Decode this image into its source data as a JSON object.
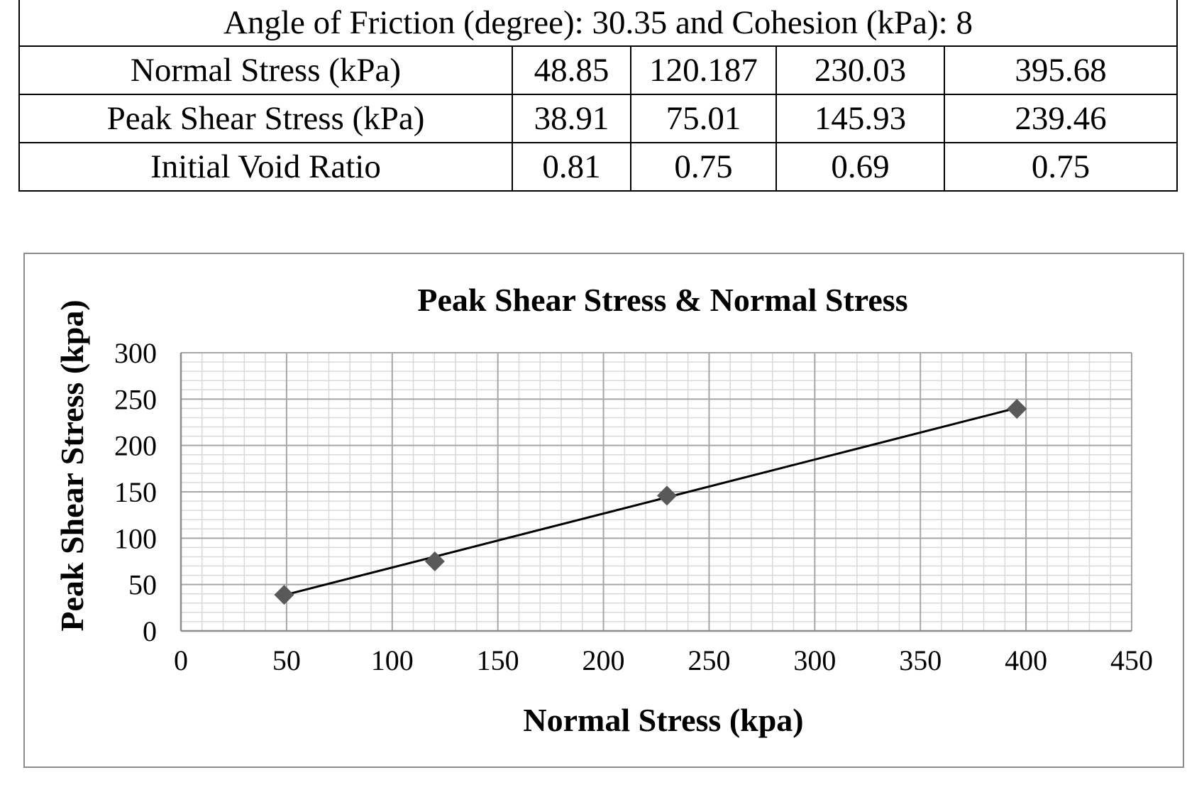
{
  "table": {
    "caption": "Angle of Friction (degree): 30.35 and Cohesion (kPa): 8",
    "rows": [
      {
        "label": "Normal Stress (kPa)",
        "values": [
          "48.85",
          "120.187",
          "230.03",
          "395.68"
        ]
      },
      {
        "label": "Peak Shear Stress (kPa)",
        "values": [
          "38.91",
          "75.01",
          "145.93",
          "239.46"
        ]
      },
      {
        "label": "Initial Void Ratio",
        "values": [
          "0.81",
          "0.75",
          "0.69",
          "0.75"
        ]
      }
    ]
  },
  "chart_data": {
    "type": "scatter",
    "title": "Peak Shear Stress & Normal Stress",
    "xlabel": "Normal Stress (kpa)",
    "ylabel": "Peak Shear Stress (kpa)",
    "xlim": [
      0,
      450
    ],
    "ylim": [
      0,
      300
    ],
    "x_ticks": [
      0,
      50,
      100,
      150,
      200,
      250,
      300,
      350,
      400,
      450
    ],
    "y_ticks": [
      0,
      50,
      100,
      150,
      200,
      250,
      300
    ],
    "grid": true,
    "legend": "none",
    "series": [
      {
        "x": [
          48.85,
          120.187,
          230.03,
          395.68
        ],
        "y": [
          38.91,
          75.01,
          145.93,
          239.46
        ],
        "marker": "diamond",
        "marker_color": "#595959"
      }
    ],
    "trendline": {
      "type": "linear",
      "x": [
        48.85,
        395.68
      ],
      "y": [
        38.6,
        240.5
      ],
      "color": "#000000"
    },
    "gridline_color": "#a6a6a6",
    "minor_gridline_color": "#d9d9d9"
  }
}
